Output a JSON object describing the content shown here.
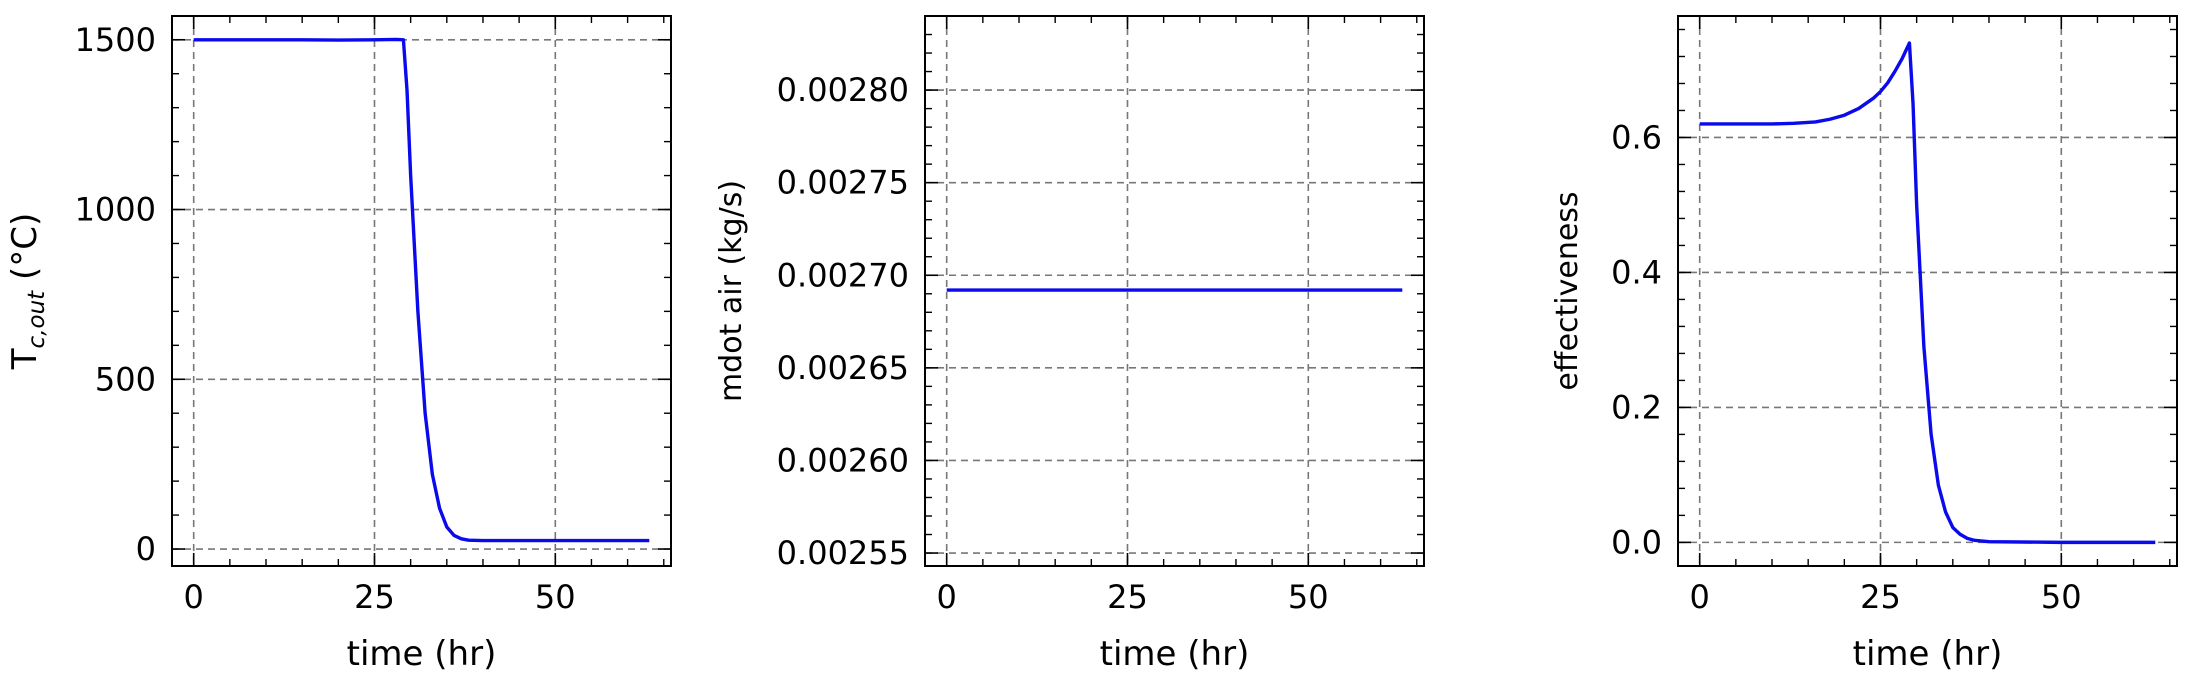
{
  "chart_data": [
    {
      "type": "line",
      "xlabel": "time (hr)",
      "ylabel": "T",
      "ylabel_sub": "c,out",
      "ylabel_suffix": " (°C)",
      "xlim": [
        -3,
        66
      ],
      "ylim": [
        -50,
        1570
      ],
      "xticks": [
        0,
        25,
        50
      ],
      "xtick_labels": [
        "0",
        "25",
        "50"
      ],
      "yticks": [
        0,
        500,
        1000,
        1500
      ],
      "ytick_labels": [
        "0",
        "500",
        "1000",
        "1500"
      ],
      "grid": true,
      "color": "#0a0aec",
      "x": [
        0,
        5,
        10,
        15,
        20,
        25,
        28,
        29,
        29.5,
        30,
        31,
        32,
        33,
        34,
        35,
        36,
        37,
        38,
        40,
        45,
        50,
        55,
        60,
        63
      ],
      "y": [
        1500,
        1500,
        1500,
        1500,
        1499,
        1500,
        1501,
        1500,
        1350,
        1100,
        700,
        400,
        220,
        120,
        65,
        40,
        30,
        26,
        25,
        25,
        25,
        25,
        25,
        25
      ]
    },
    {
      "type": "line",
      "xlabel": "time (hr)",
      "ylabel": "mdot air (kg/s)",
      "xlim": [
        -3,
        66
      ],
      "ylim": [
        0.002543,
        0.00284
      ],
      "xticks": [
        0,
        25,
        50
      ],
      "xtick_labels": [
        "0",
        "25",
        "50"
      ],
      "yticks": [
        0.00255,
        0.0026,
        0.00265,
        0.0027,
        0.00275,
        0.0028
      ],
      "ytick_labels": [
        "0.00255",
        "0.00260",
        "0.00265",
        "0.00270",
        "0.00275",
        "0.00280"
      ],
      "grid": true,
      "color": "#0a0aec",
      "x": [
        0,
        63
      ],
      "y": [
        0.002692,
        0.002692
      ]
    },
    {
      "type": "line",
      "xlabel": "time (hr)",
      "ylabel": "effectiveness",
      "xlim": [
        -3,
        66
      ],
      "ylim": [
        -0.035,
        0.78
      ],
      "xticks": [
        0,
        25,
        50
      ],
      "xtick_labels": [
        "0",
        "25",
        "50"
      ],
      "yticks": [
        0.0,
        0.2,
        0.4,
        0.6
      ],
      "ytick_labels": [
        "0.0",
        "0.2",
        "0.4",
        "0.6"
      ],
      "grid": true,
      "color": "#0a0aec",
      "x": [
        0,
        5,
        10,
        13,
        16,
        18,
        20,
        22,
        24,
        25,
        26,
        27,
        28,
        29,
        29.5,
        30,
        31,
        32,
        33,
        34,
        35,
        36,
        37,
        38,
        40,
        50,
        63
      ],
      "y": [
        0.62,
        0.62,
        0.62,
        0.621,
        0.623,
        0.627,
        0.633,
        0.643,
        0.658,
        0.668,
        0.681,
        0.698,
        0.717,
        0.74,
        0.65,
        0.5,
        0.29,
        0.16,
        0.085,
        0.045,
        0.022,
        0.012,
        0.006,
        0.003,
        0.001,
        0.0,
        0.0
      ]
    }
  ]
}
